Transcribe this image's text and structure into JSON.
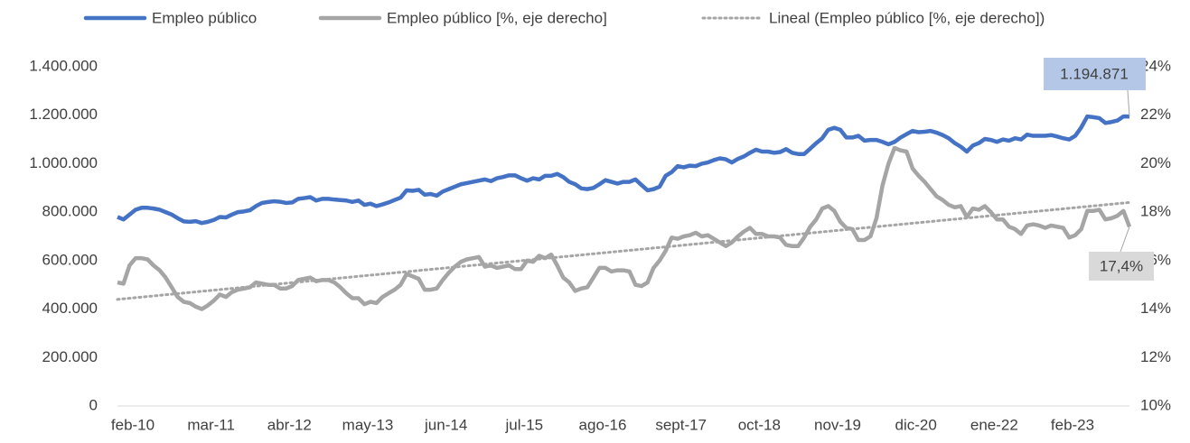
{
  "chart_data": {
    "type": "line",
    "categories": [
      "feb-10",
      null,
      null,
      null,
      null,
      null,
      null,
      null,
      null,
      null,
      null,
      null,
      null,
      "mar-11",
      null,
      null,
      null,
      null,
      null,
      null,
      null,
      null,
      null,
      null,
      null,
      null,
      "abr-12",
      null,
      null,
      null,
      null,
      null,
      null,
      null,
      null,
      null,
      null,
      null,
      null,
      "may-13",
      null,
      null,
      null,
      null,
      null,
      null,
      null,
      null,
      null,
      null,
      null,
      null,
      "jun-14",
      null,
      null,
      null,
      null,
      null,
      null,
      null,
      null,
      null,
      null,
      null,
      null,
      "jul-15",
      null,
      null,
      null,
      null,
      null,
      null,
      null,
      null,
      null,
      null,
      null,
      null,
      "ago-16",
      null,
      null,
      null,
      null,
      null,
      null,
      null,
      null,
      null,
      null,
      null,
      null,
      "sept-17",
      null,
      null,
      null,
      null,
      null,
      null,
      null,
      null,
      null,
      null,
      null,
      null,
      "oct-18",
      null,
      null,
      null,
      null,
      null,
      null,
      null,
      null,
      null,
      null,
      null,
      null,
      "nov-19",
      null,
      null,
      null,
      null,
      null,
      null,
      null,
      null,
      null,
      null,
      null,
      null,
      "dic-20",
      null,
      null,
      null,
      null,
      null,
      null,
      null,
      null,
      null,
      null,
      null,
      null,
      "ene-22",
      null,
      null,
      null,
      null,
      null,
      null,
      null,
      null,
      null,
      null,
      null,
      null,
      "feb-23",
      null,
      null,
      null,
      null,
      null,
      null,
      null,
      null,
      null,
      null,
      null,
      null
    ],
    "series": [
      {
        "name": "Empleo público",
        "color": "#4472c4",
        "end_label": "1.194.871",
        "values": [
          780000,
          770000,
          790000,
          810000,
          818000,
          818000,
          815000,
          810000,
          800000,
          790000,
          775000,
          762000,
          760000,
          763000,
          755000,
          760000,
          768000,
          780000,
          778000,
          790000,
          800000,
          803000,
          808000,
          825000,
          838000,
          842000,
          845000,
          843000,
          838000,
          840000,
          855000,
          858000,
          862000,
          848000,
          855000,
          855000,
          852000,
          850000,
          848000,
          842000,
          848000,
          830000,
          835000,
          825000,
          832000,
          840000,
          850000,
          860000,
          890000,
          888000,
          892000,
          872000,
          875000,
          868000,
          885000,
          895000,
          905000,
          915000,
          920000,
          925000,
          930000,
          935000,
          928000,
          940000,
          945000,
          952000,
          952000,
          940000,
          930000,
          940000,
          935000,
          950000,
          950000,
          958000,
          945000,
          925000,
          915000,
          898000,
          895000,
          900000,
          915000,
          932000,
          925000,
          918000,
          925000,
          925000,
          935000,
          912000,
          890000,
          895000,
          905000,
          950000,
          965000,
          990000,
          985000,
          992000,
          990000,
          1000000,
          1005000,
          1015000,
          1022000,
          1018000,
          1005000,
          1020000,
          1030000,
          1045000,
          1058000,
          1050000,
          1050000,
          1045000,
          1048000,
          1060000,
          1045000,
          1040000,
          1040000,
          1062000,
          1085000,
          1105000,
          1140000,
          1148000,
          1140000,
          1108000,
          1108000,
          1115000,
          1095000,
          1098000,
          1098000,
          1090000,
          1080000,
          1090000,
          1108000,
          1122000,
          1135000,
          1130000,
          1132000,
          1135000,
          1128000,
          1118000,
          1105000,
          1085000,
          1070000,
          1050000,
          1075000,
          1085000,
          1102000,
          1098000,
          1090000,
          1100000,
          1095000,
          1105000,
          1100000,
          1120000,
          1115000,
          1115000,
          1115000,
          1118000,
          1112000,
          1105000,
          1100000,
          1115000,
          1150000,
          1195000,
          1192000,
          1188000,
          1168000,
          1172000,
          1178000,
          1195000,
          1194871
        ]
      },
      {
        "name": "Empleo público [%, eje derecho]",
        "color": "#a5a5a5",
        "axis": "y2",
        "end_label": "17,4%",
        "values": [
          15.1,
          15.05,
          15.8,
          16.1,
          16.1,
          16.05,
          15.8,
          15.6,
          15.3,
          14.9,
          14.5,
          14.3,
          14.25,
          14.1,
          14.0,
          14.15,
          14.35,
          14.6,
          14.5,
          14.7,
          14.8,
          14.85,
          14.9,
          15.1,
          15.05,
          15.0,
          15.0,
          14.85,
          14.85,
          14.95,
          15.2,
          15.25,
          15.3,
          15.15,
          15.2,
          15.2,
          15.1,
          14.9,
          14.65,
          14.45,
          14.45,
          14.2,
          14.3,
          14.25,
          14.5,
          14.65,
          14.8,
          15.0,
          15.45,
          15.35,
          15.25,
          14.8,
          14.8,
          14.85,
          15.2,
          15.5,
          15.75,
          15.95,
          16.05,
          16.1,
          16.15,
          15.75,
          15.8,
          15.7,
          15.75,
          15.8,
          15.65,
          15.65,
          16.0,
          15.95,
          16.2,
          16.1,
          16.25,
          15.8,
          15.3,
          15.1,
          14.75,
          14.85,
          14.9,
          15.3,
          15.7,
          15.7,
          15.55,
          15.6,
          15.6,
          15.55,
          15.0,
          14.95,
          15.1,
          15.7,
          16.0,
          16.4,
          16.95,
          16.9,
          17.0,
          17.05,
          17.15,
          17.0,
          17.05,
          16.9,
          16.75,
          16.6,
          16.75,
          17.0,
          17.2,
          17.35,
          17.1,
          17.1,
          17.0,
          17.0,
          16.95,
          16.65,
          16.6,
          16.6,
          16.95,
          17.4,
          17.7,
          18.15,
          18.25,
          18.05,
          17.6,
          17.35,
          17.3,
          16.85,
          16.85,
          17.0,
          17.75,
          19.1,
          20.0,
          20.65,
          20.55,
          20.5,
          19.8,
          19.5,
          19.25,
          18.95,
          18.65,
          18.5,
          18.3,
          18.2,
          18.25,
          17.8,
          18.15,
          18.1,
          18.25,
          18.0,
          17.7,
          17.7,
          17.4,
          17.3,
          17.1,
          17.45,
          17.5,
          17.45,
          17.35,
          17.45,
          17.4,
          17.35,
          16.95,
          17.05,
          17.3,
          18.05,
          18.05,
          18.1,
          17.7,
          17.75,
          17.85,
          18.05,
          17.4
        ]
      }
    ],
    "trendline": {
      "name": "Lineal (Empleo público [%, eje derecho])",
      "color": "#a5a5a5",
      "axis": "y2",
      "start": 14.4,
      "end": 18.4
    },
    "ylim": [
      0,
      1400000
    ],
    "yticks": [
      0,
      {
        "value": 200000,
        "label": "200.000"
      },
      {
        "value": 400000,
        "label": "400.000"
      },
      {
        "value": 600000,
        "label": "600.000"
      },
      {
        "value": 800000,
        "label": "800.000"
      },
      {
        "value": 1000000,
        "label": "1.000.000"
      },
      {
        "value": 1200000,
        "label": "1.200.000"
      },
      {
        "value": 1400000,
        "label": "1.400.000"
      }
    ],
    "y2lim": [
      10,
      24
    ],
    "y2ticks": [
      {
        "value": 10,
        "label": "10%"
      },
      {
        "value": 12,
        "label": "12%"
      },
      {
        "value": 14,
        "label": "14%"
      },
      {
        "value": 16,
        "label": "16%"
      },
      {
        "value": 18,
        "label": "18%"
      },
      {
        "value": 20,
        "label": "20%"
      },
      {
        "value": 22,
        "label": "22%"
      },
      {
        "value": 24,
        "label": "24%"
      }
    ],
    "grid": false,
    "legend": "top"
  }
}
